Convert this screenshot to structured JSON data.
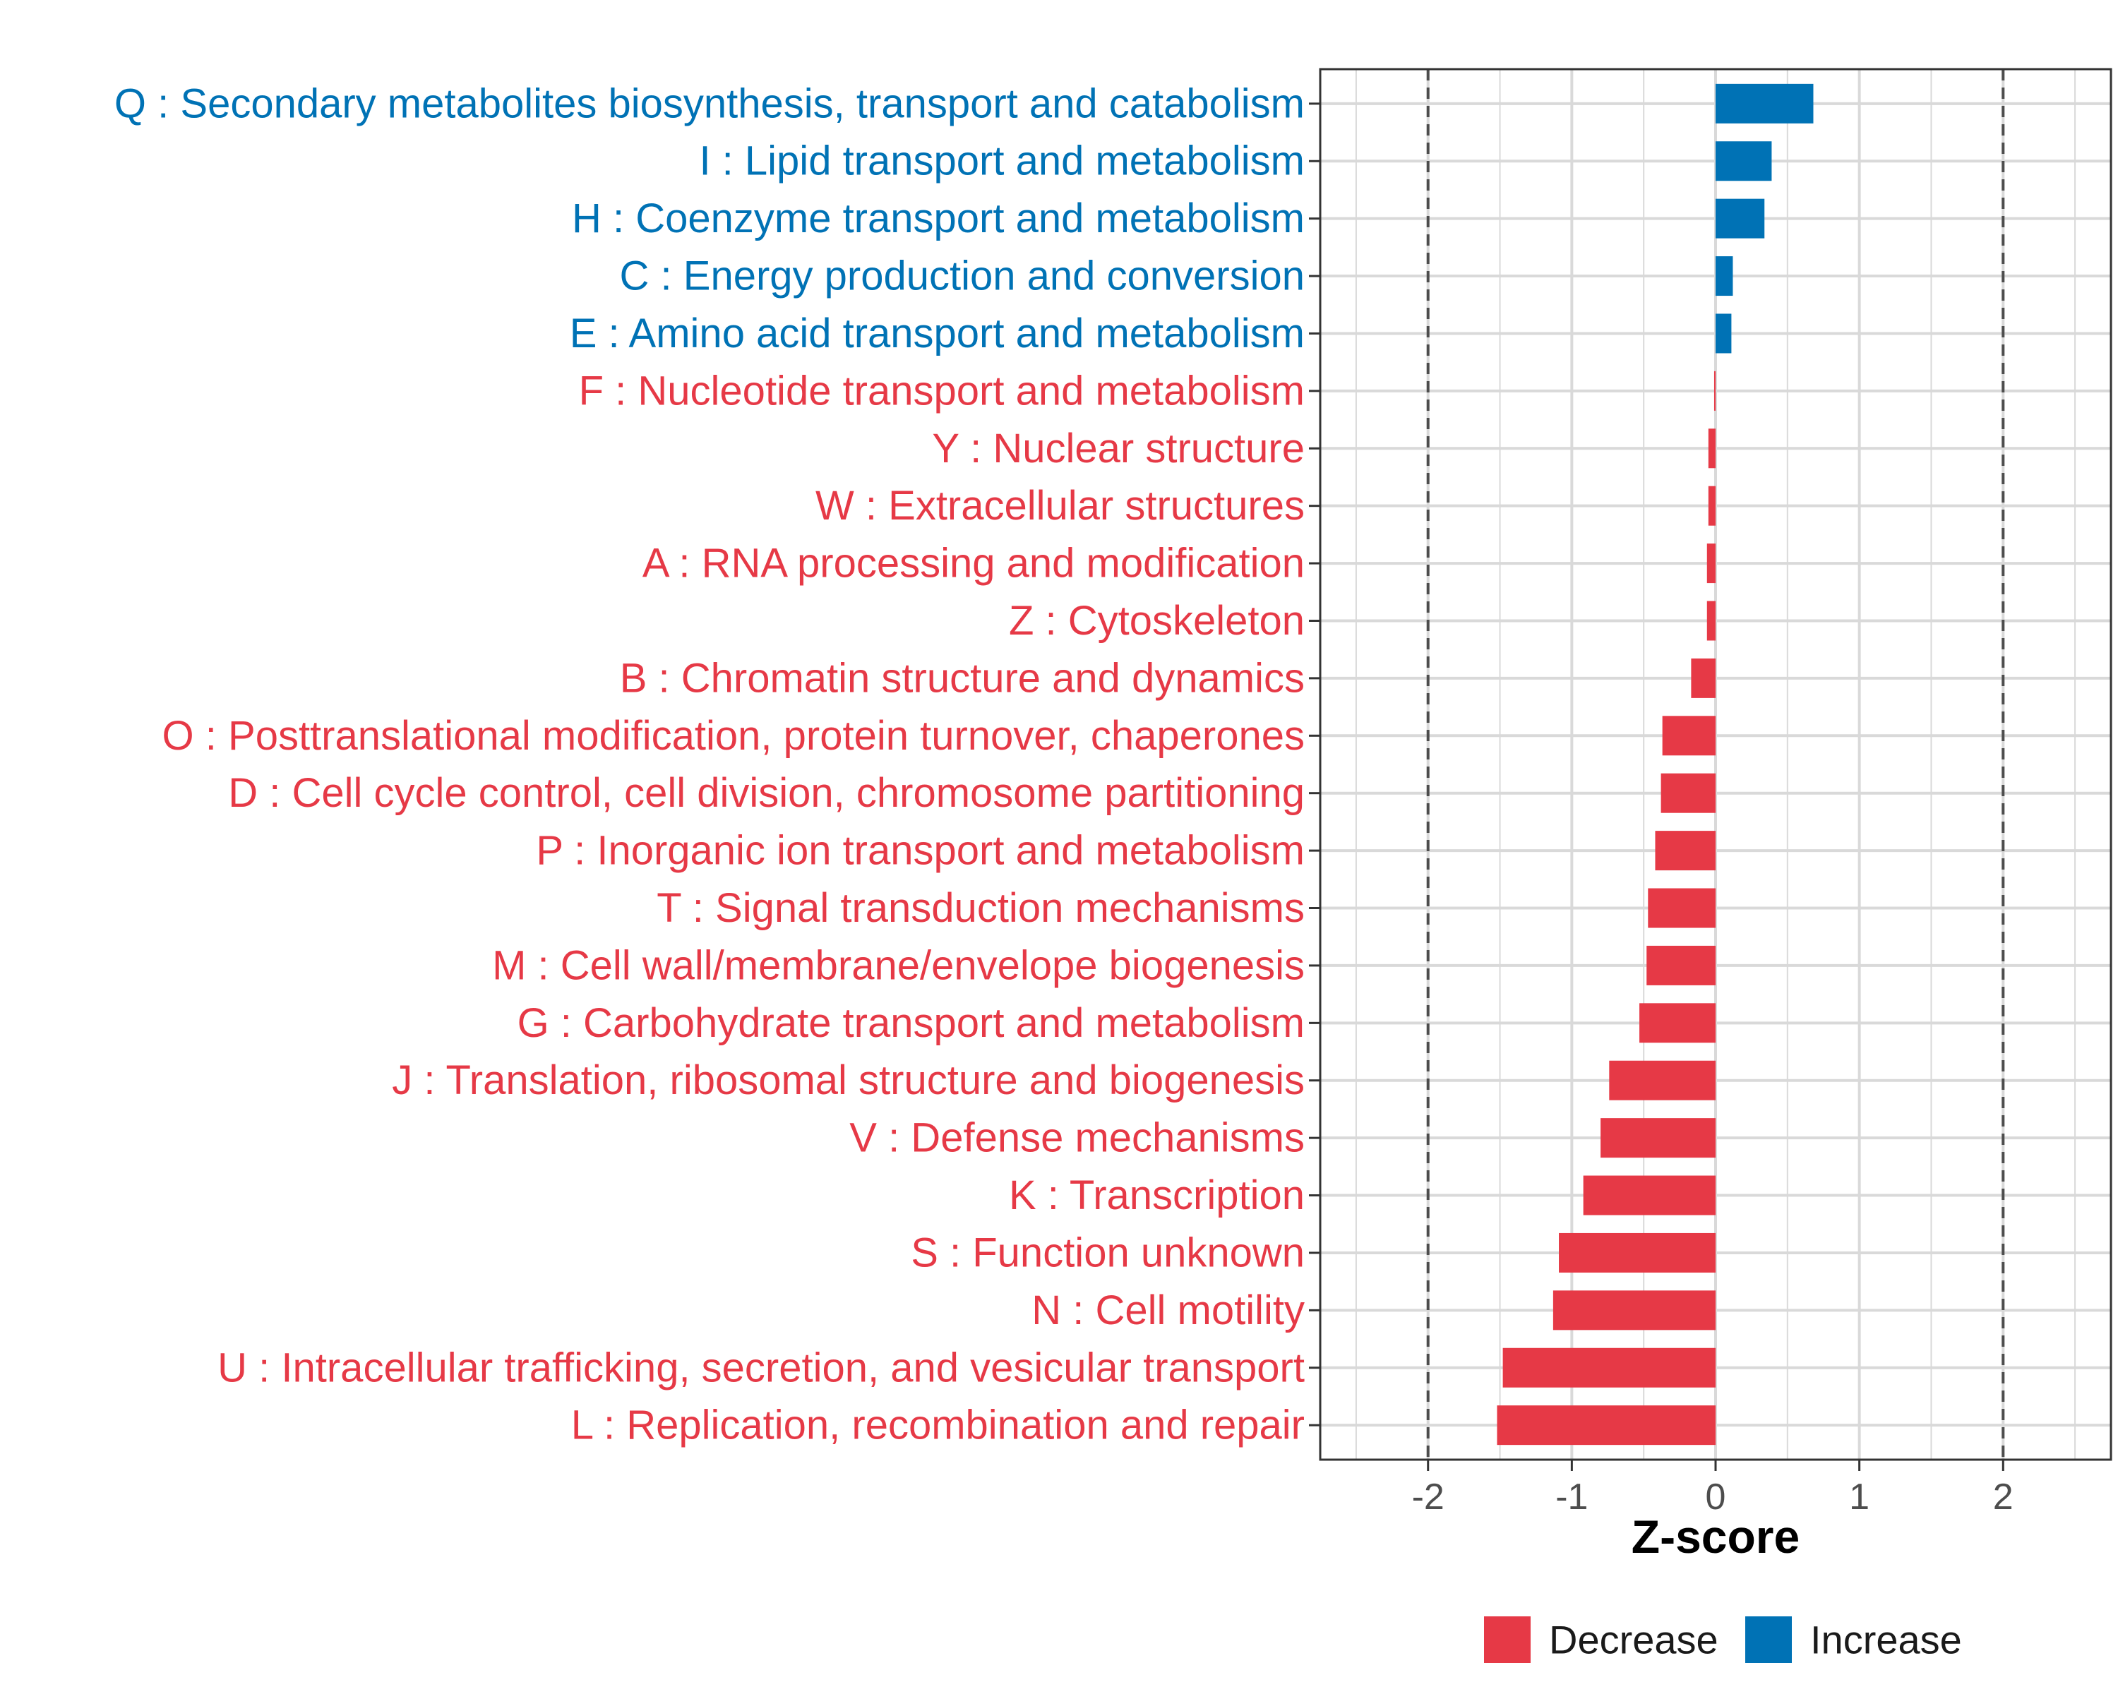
{
  "chart_data": {
    "type": "bar",
    "orientation": "horizontal",
    "title": "",
    "xlabel": "Z-score",
    "ylabel": "",
    "xlim": [
      -2.75,
      2.75
    ],
    "xticks": [
      -2,
      -1,
      0,
      1,
      2
    ],
    "xtick_labels": [
      "-2",
      "-1",
      "0",
      "1",
      "2"
    ],
    "reference_lines": [
      -2,
      2
    ],
    "grid": true,
    "legend_position": "bottom",
    "categories": [
      "Q : Secondary metabolites biosynthesis, transport and catabolism",
      "I : Lipid transport and metabolism",
      "H : Coenzyme transport and metabolism",
      "C : Energy production and conversion",
      "E : Amino acid transport and metabolism",
      "F : Nucleotide transport and metabolism",
      "Y : Nuclear structure",
      "W : Extracellular structures",
      "A : RNA processing and modification",
      "Z : Cytoskeleton",
      "B : Chromatin structure and dynamics",
      "O : Posttranslational modification, protein turnover, chaperones",
      "D : Cell cycle control, cell division, chromosome partitioning",
      "P : Inorganic ion transport and metabolism",
      "T : Signal transduction mechanisms",
      "M : Cell wall/membrane/envelope biogenesis",
      "G : Carbohydrate transport and metabolism",
      "J : Translation, ribosomal structure and biogenesis",
      "V : Defense mechanisms",
      "K : Transcription",
      "S : Function unknown",
      "N : Cell motility",
      "U : Intracellular trafficking, secretion, and vesicular transport",
      "L : Replication, recombination and repair"
    ],
    "values": [
      0.68,
      0.39,
      0.34,
      0.12,
      0.11,
      -0.01,
      -0.05,
      -0.05,
      -0.06,
      -0.06,
      -0.17,
      -0.37,
      -0.38,
      -0.42,
      -0.47,
      -0.48,
      -0.53,
      -0.74,
      -0.8,
      -0.92,
      -1.09,
      -1.13,
      -1.48,
      -1.52
    ],
    "groups": [
      "Increase",
      "Increase",
      "Increase",
      "Increase",
      "Increase",
      "Decrease",
      "Decrease",
      "Decrease",
      "Decrease",
      "Decrease",
      "Decrease",
      "Decrease",
      "Decrease",
      "Decrease",
      "Decrease",
      "Decrease",
      "Decrease",
      "Decrease",
      "Decrease",
      "Decrease",
      "Decrease",
      "Decrease",
      "Decrease",
      "Decrease"
    ],
    "legend": [
      {
        "name": "Decrease",
        "color": "#E63946"
      },
      {
        "name": "Increase",
        "color": "#0072B5"
      }
    ]
  },
  "colors": {
    "decrease": "#E63946",
    "increase": "#0072B5",
    "grid": "#d9d9d9",
    "panel_border": "#333333",
    "reference_line": "#4d4d4d"
  }
}
